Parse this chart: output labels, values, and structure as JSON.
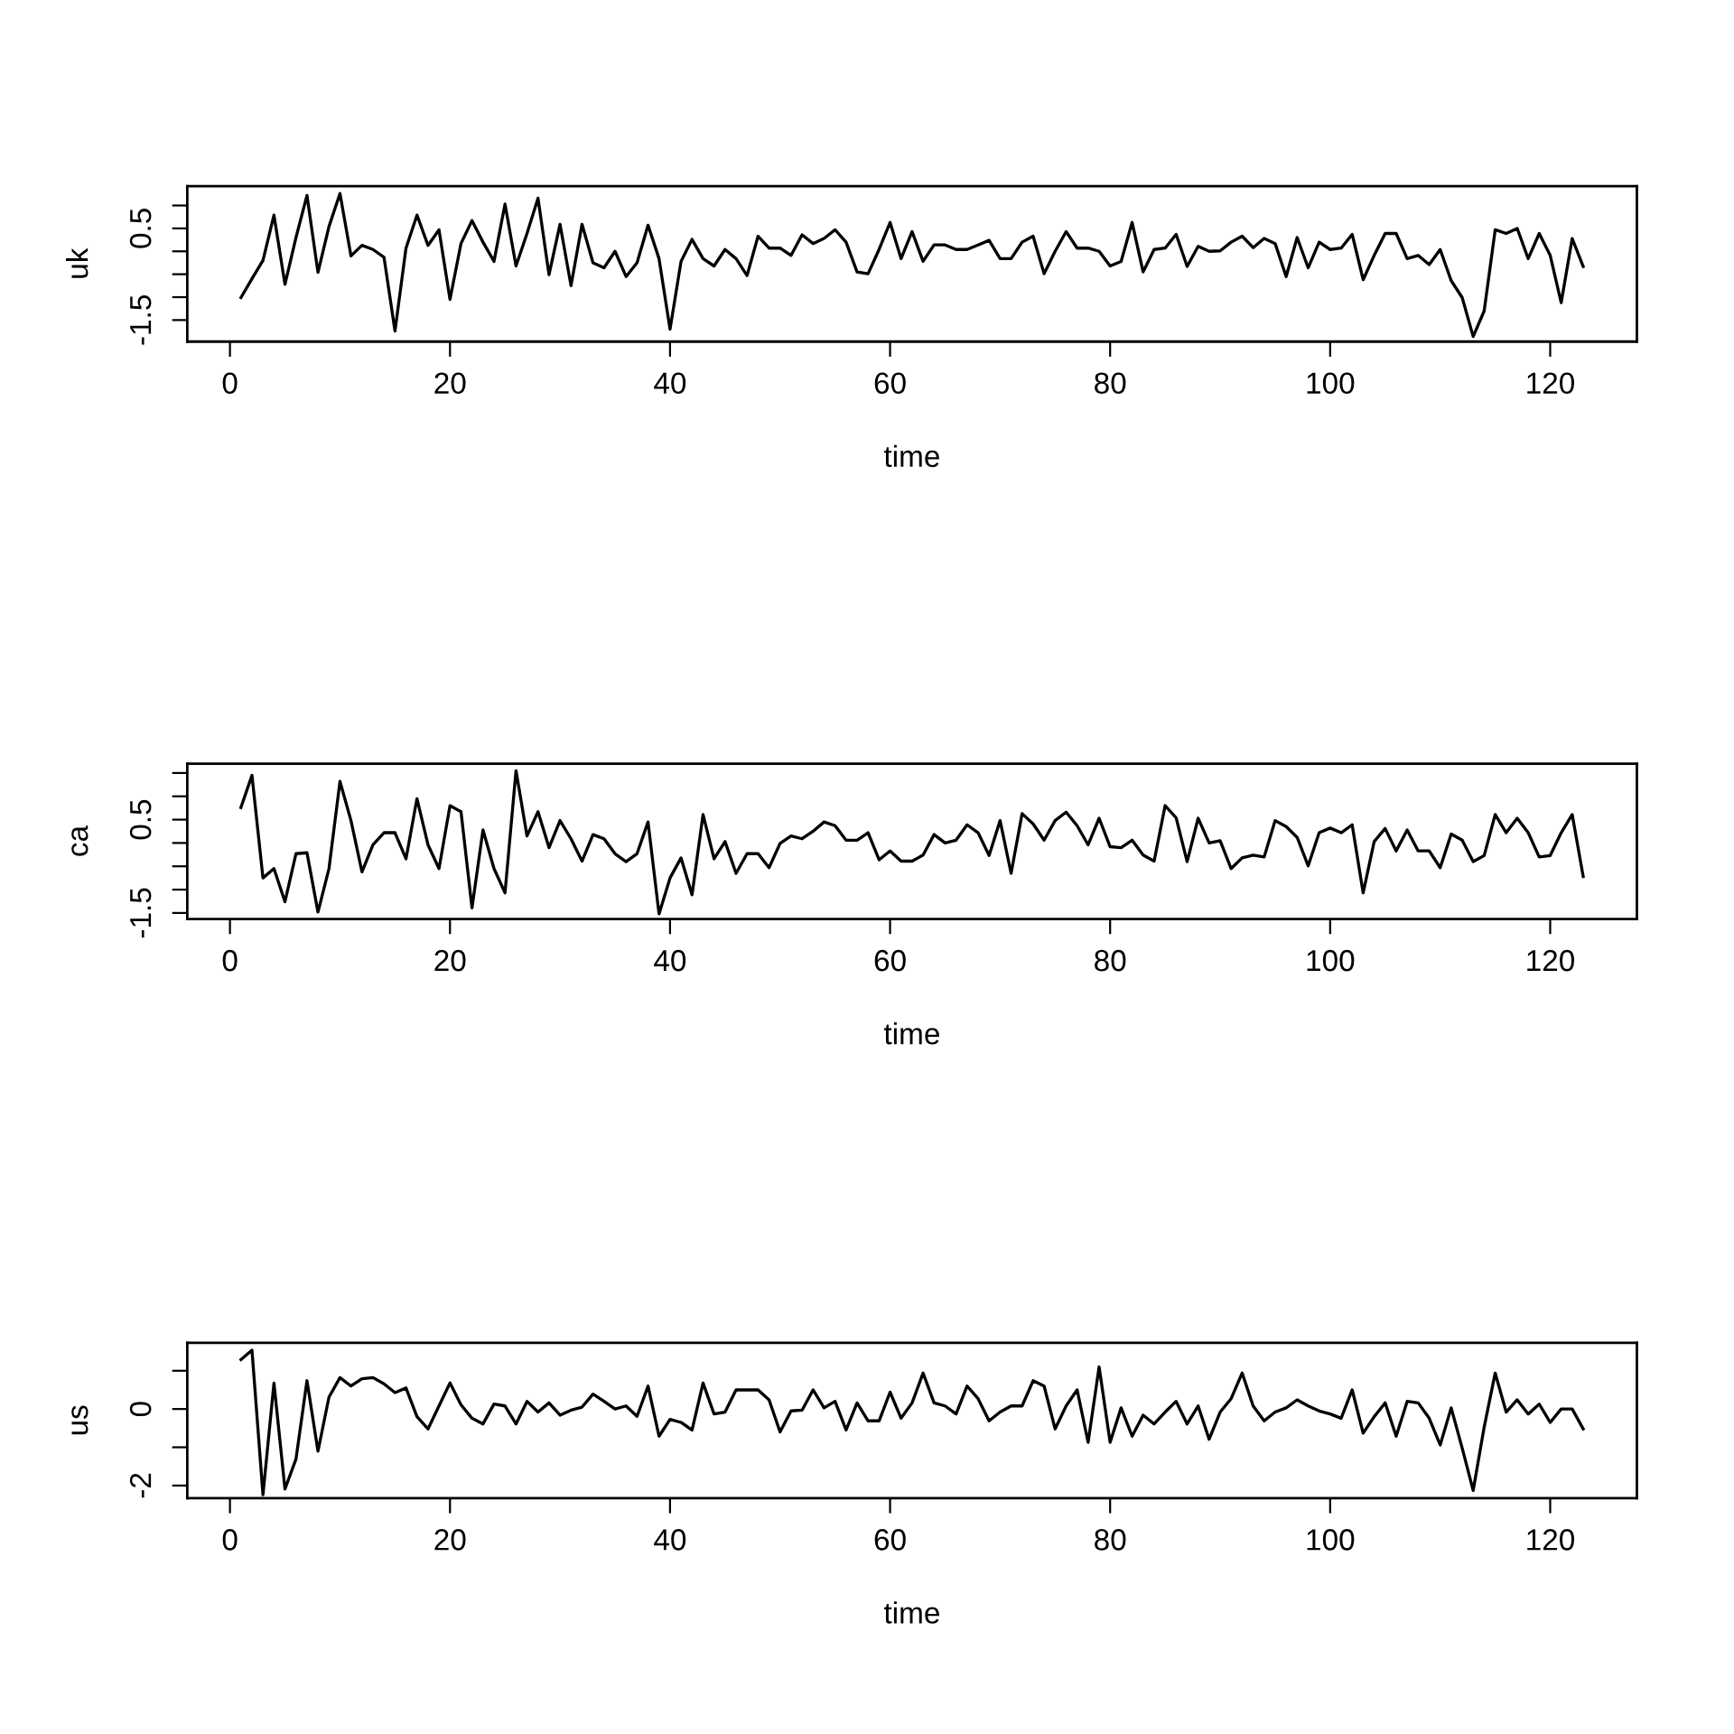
{
  "chart_data": [
    {
      "type": "line",
      "xlabel": "time",
      "ylabel": "uk",
      "grid": false,
      "legend": false,
      "xlim": [
        -3.88,
        127.88
      ],
      "ylim": [
        -1.97,
        1.42
      ],
      "xticks": [
        0,
        20,
        40,
        60,
        80,
        100,
        120
      ],
      "yticks": [
        {
          "value": -1.5,
          "label": "-1.5"
        },
        {
          "value": -1,
          "label": null
        },
        {
          "value": -0.5,
          "label": null
        },
        {
          "value": 0,
          "label": null
        },
        {
          "value": 0.5,
          "label": "0.5"
        },
        {
          "value": 1,
          "label": null
        }
      ],
      "series": [
        {
          "color": "#000000",
          "x": [
            1,
            2,
            3,
            4,
            5,
            6,
            7,
            8,
            9,
            10,
            11,
            12,
            13,
            14,
            15,
            16,
            17,
            18,
            19,
            20,
            21,
            22,
            23,
            24,
            25,
            26,
            27,
            28,
            29,
            30,
            31,
            32,
            33,
            34,
            35,
            36,
            37,
            38,
            39,
            40,
            41,
            42,
            43,
            44,
            45,
            46,
            47,
            48,
            49,
            50,
            51,
            52,
            53,
            54,
            55,
            56,
            57,
            58,
            59,
            60,
            61,
            62,
            63,
            64,
            65,
            66,
            67,
            68,
            69,
            70,
            71,
            72,
            73,
            74,
            75,
            76,
            77,
            78,
            79,
            80,
            81,
            82,
            83,
            84,
            85,
            86,
            87,
            88,
            89,
            90,
            91,
            92,
            93,
            94,
            95,
            96,
            97,
            98,
            99,
            100,
            101,
            102,
            103,
            104,
            105,
            106,
            107,
            108,
            109,
            110,
            111,
            112,
            113,
            114,
            115,
            116,
            117,
            118,
            119,
            120,
            121,
            122,
            123
          ],
          "values": [
            -1.01,
            -0.6,
            -0.2,
            0.79,
            -0.72,
            0.3,
            1.22,
            -0.46,
            0.54,
            1.26,
            -0.1,
            0.13,
            0.04,
            -0.13,
            -1.74,
            0.07,
            0.79,
            0.13,
            0.47,
            -1.05,
            0.17,
            0.67,
            0.2,
            -0.22,
            1.03,
            -0.32,
            0.39,
            1.16,
            -0.51,
            0.59,
            -0.75,
            0.59,
            -0.25,
            -0.36,
            0,
            -0.55,
            -0.25,
            0.57,
            -0.16,
            -1.7,
            -0.22,
            0.26,
            -0.16,
            -0.32,
            0.04,
            -0.16,
            -0.53,
            0.33,
            0.07,
            0.07,
            -0.09,
            0.36,
            0.17,
            0.28,
            0.47,
            0.2,
            -0.45,
            -0.49,
            0.04,
            0.63,
            -0.16,
            0.43,
            -0.22,
            0.14,
            0.14,
            0.04,
            0.04,
            0.14,
            0.24,
            -0.16,
            -0.16,
            0.2,
            0.33,
            -0.49,
            0,
            0.43,
            0.07,
            0.07,
            0,
            -0.32,
            -0.22,
            0.63,
            -0.45,
            0.04,
            0.07,
            0.37,
            -0.33,
            0.11,
            0,
            0.01,
            0.2,
            0.33,
            0.08,
            0.28,
            0.17,
            -0.55,
            0.3,
            -0.36,
            0.2,
            0.04,
            0.07,
            0.37,
            -0.62,
            -0.09,
            0.39,
            0.39,
            -0.16,
            -0.09,
            -0.29,
            0.04,
            -0.64,
            -1.01,
            -1.86,
            -1.3,
            0.47,
            0.39,
            0.5,
            -0.16,
            0.39,
            -0.09,
            -1.12,
            0.28,
            -0.33
          ]
        }
      ]
    },
    {
      "type": "line",
      "xlabel": "time",
      "ylabel": "ca",
      "grid": false,
      "legend": false,
      "xlim": [
        -3.88,
        127.88
      ],
      "ylim": [
        -1.63,
        1.7
      ],
      "xticks": [
        0,
        20,
        40,
        60,
        80,
        100,
        120
      ],
      "yticks": [
        {
          "value": -1.5,
          "label": "-1.5"
        },
        {
          "value": -1,
          "label": null
        },
        {
          "value": -0.5,
          "label": null
        },
        {
          "value": 0,
          "label": null
        },
        {
          "value": 0.5,
          "label": "0.5"
        },
        {
          "value": 1,
          "label": null
        },
        {
          "value": 1.5,
          "label": null
        }
      ],
      "series": [
        {
          "color": "#000000",
          "x": [
            1,
            2,
            3,
            4,
            5,
            6,
            7,
            8,
            9,
            10,
            11,
            12,
            13,
            14,
            15,
            16,
            17,
            18,
            19,
            20,
            21,
            22,
            23,
            24,
            25,
            26,
            27,
            28,
            29,
            30,
            31,
            32,
            33,
            34,
            35,
            36,
            37,
            38,
            39,
            40,
            41,
            42,
            43,
            44,
            45,
            46,
            47,
            48,
            49,
            50,
            51,
            52,
            53,
            54,
            55,
            56,
            57,
            58,
            59,
            60,
            61,
            62,
            63,
            64,
            65,
            66,
            67,
            68,
            69,
            70,
            71,
            72,
            73,
            74,
            75,
            76,
            77,
            78,
            79,
            80,
            81,
            82,
            83,
            84,
            85,
            86,
            87,
            88,
            89,
            90,
            91,
            92,
            93,
            94,
            95,
            96,
            97,
            98,
            99,
            100,
            101,
            102,
            103,
            104,
            105,
            106,
            107,
            108,
            109,
            110,
            111,
            112,
            113,
            114,
            115,
            116,
            117,
            118,
            119,
            120,
            121,
            122,
            123
          ],
          "values": [
            0.76,
            1.45,
            -0.75,
            -0.55,
            -1.26,
            -0.23,
            -0.21,
            -1.48,
            -0.55,
            1.32,
            0.48,
            -0.62,
            -0.04,
            0.22,
            0.22,
            -0.34,
            0.95,
            -0.04,
            -0.55,
            0.8,
            0.67,
            -1.39,
            0.28,
            -0.55,
            -1.07,
            1.55,
            0.15,
            0.67,
            -0.1,
            0.48,
            0.09,
            -0.39,
            0.18,
            0.09,
            -0.23,
            -0.4,
            -0.23,
            0.45,
            -1.52,
            -0.75,
            -0.32,
            -1.11,
            0.61,
            -0.34,
            0.03,
            -0.65,
            -0.23,
            -0.23,
            -0.53,
            -0.01,
            0.15,
            0.09,
            0.25,
            0.45,
            0.37,
            0.06,
            0.06,
            0.22,
            -0.36,
            -0.17,
            -0.39,
            -0.39,
            -0.26,
            0.18,
            0,
            0.06,
            0.39,
            0.22,
            -0.27,
            0.48,
            -0.65,
            0.63,
            0.41,
            0.06,
            0.48,
            0.66,
            0.37,
            -0.04,
            0.53,
            -0.08,
            -0.1,
            0.06,
            -0.26,
            -0.39,
            0.8,
            0.54,
            -0.4,
            0.53,
            0,
            0.05,
            -0.55,
            -0.32,
            -0.26,
            -0.3,
            0.48,
            0.35,
            0.12,
            -0.49,
            0.22,
            0.32,
            0.22,
            0.39,
            -1.07,
            0.03,
            0.31,
            -0.17,
            0.28,
            -0.17,
            -0.17,
            -0.53,
            0.19,
            0.06,
            -0.4,
            -0.27,
            0.61,
            0.22,
            0.53,
            0.22,
            -0.3,
            -0.27,
            0.22,
            0.61,
            -0.72
          ]
        }
      ]
    },
    {
      "type": "line",
      "xlabel": "time",
      "ylabel": "us",
      "grid": false,
      "legend": false,
      "xlim": [
        -3.88,
        127.88
      ],
      "ylim": [
        -2.33,
        1.73
      ],
      "xticks": [
        0,
        20,
        40,
        60,
        80,
        100,
        120
      ],
      "yticks": [
        {
          "value": -2,
          "label": "-2"
        },
        {
          "value": -1,
          "label": null
        },
        {
          "value": 0,
          "label": "0"
        },
        {
          "value": 1,
          "label": null
        }
      ],
      "series": [
        {
          "color": "#000000",
          "x": [
            1,
            2,
            3,
            4,
            5,
            6,
            7,
            8,
            9,
            10,
            11,
            12,
            13,
            14,
            15,
            16,
            17,
            18,
            19,
            20,
            21,
            22,
            23,
            24,
            25,
            26,
            27,
            28,
            29,
            30,
            31,
            32,
            33,
            34,
            35,
            36,
            37,
            38,
            39,
            40,
            41,
            42,
            43,
            44,
            45,
            46,
            47,
            48,
            49,
            50,
            51,
            52,
            53,
            54,
            55,
            56,
            57,
            58,
            59,
            60,
            61,
            62,
            63,
            64,
            65,
            66,
            67,
            68,
            69,
            70,
            71,
            72,
            73,
            74,
            75,
            76,
            77,
            78,
            79,
            80,
            81,
            82,
            83,
            84,
            85,
            86,
            87,
            88,
            89,
            90,
            91,
            92,
            93,
            94,
            95,
            96,
            97,
            98,
            99,
            100,
            101,
            102,
            103,
            104,
            105,
            106,
            107,
            108,
            109,
            110,
            111,
            112,
            113,
            114,
            115,
            116,
            117,
            118,
            119,
            120,
            121,
            122,
            123
          ],
          "values": [
            1.29,
            1.54,
            -2.24,
            0.68,
            -2.09,
            -1.31,
            0.74,
            -1.1,
            0.31,
            0.82,
            0.6,
            0.79,
            0.82,
            0.66,
            0.43,
            0.55,
            -0.2,
            -0.52,
            0.08,
            0.68,
            0.11,
            -0.24,
            -0.39,
            0.13,
            0.08,
            -0.39,
            0.2,
            -0.08,
            0.16,
            -0.16,
            -0.03,
            0.05,
            0.39,
            0.2,
            0,
            0.08,
            -0.19,
            0.6,
            -0.71,
            -0.27,
            -0.35,
            -0.55,
            0.68,
            -0.13,
            -0.08,
            0.5,
            0.5,
            0.5,
            0.24,
            -0.6,
            -0.05,
            -0.03,
            0.5,
            0.03,
            0.2,
            -0.55,
            0.16,
            -0.31,
            -0.31,
            0.44,
            -0.24,
            0.16,
            0.94,
            0.16,
            0.08,
            -0.13,
            0.6,
            0.27,
            -0.31,
            -0.08,
            0.08,
            0.08,
            0.74,
            0.6,
            -0.52,
            0.08,
            0.5,
            -0.87,
            1.1,
            -0.87,
            0.03,
            -0.71,
            -0.16,
            -0.39,
            -0.08,
            0.2,
            -0.39,
            0.08,
            -0.79,
            -0.08,
            0.27,
            0.94,
            0.08,
            -0.31,
            -0.08,
            0.03,
            0.24,
            0.08,
            -0.05,
            -0.13,
            -0.24,
            0.5,
            -0.63,
            -0.2,
            0.16,
            -0.71,
            0.2,
            0.16,
            -0.24,
            -0.94,
            0.03,
            -1.02,
            -2.13,
            -0.47,
            0.94,
            -0.08,
            0.24,
            -0.13,
            0.13,
            -0.35,
            0,
            0,
            -0.52
          ]
        }
      ]
    }
  ]
}
